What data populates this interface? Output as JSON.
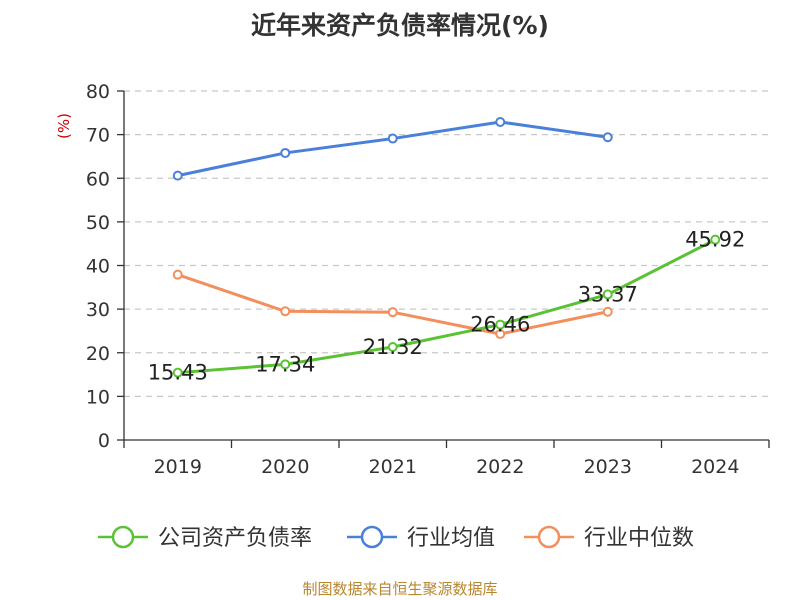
{
  "chart_data": {
    "type": "line",
    "title": "近年来资产负债率情况(%)",
    "ylabel": "(%)",
    "categories": [
      "2019",
      "2020",
      "2021",
      "2022",
      "2023",
      "2024"
    ],
    "ylim": [
      0,
      80
    ],
    "yticks": [
      0,
      10,
      20,
      30,
      40,
      50,
      60,
      70,
      80
    ],
    "grid": true,
    "legend_position": "bottom",
    "series": [
      {
        "name": "公司资产负债率",
        "color": "#5ac234",
        "values": [
          15.43,
          17.34,
          21.32,
          26.46,
          33.37,
          45.92
        ],
        "labels": [
          "15.43",
          "17.34",
          "21.32",
          "26.46",
          "33.37",
          "45.92"
        ]
      },
      {
        "name": "行业均值",
        "color": "#4a80d8",
        "values": [
          60.6,
          65.8,
          69.1,
          72.9,
          69.4,
          null
        ]
      },
      {
        "name": "行业中位数",
        "color": "#f28f5c",
        "values": [
          37.9,
          29.5,
          29.3,
          24.3,
          29.4,
          null
        ]
      }
    ]
  },
  "footer": {
    "source": "制图数据来自恒生聚源数据库"
  }
}
